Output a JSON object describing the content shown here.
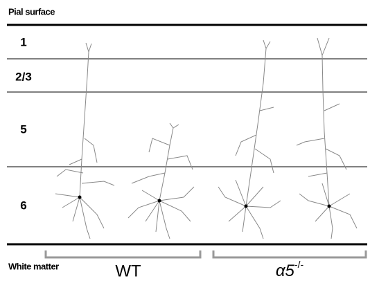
{
  "header": {
    "title": "Pial surface"
  },
  "layers": [
    "1",
    "2/3",
    "5",
    "6"
  ],
  "footer": {
    "title": "White matter"
  },
  "groups": [
    {
      "label": "WT"
    },
    {
      "label": "α5",
      "superscript": "-/-"
    }
  ]
}
